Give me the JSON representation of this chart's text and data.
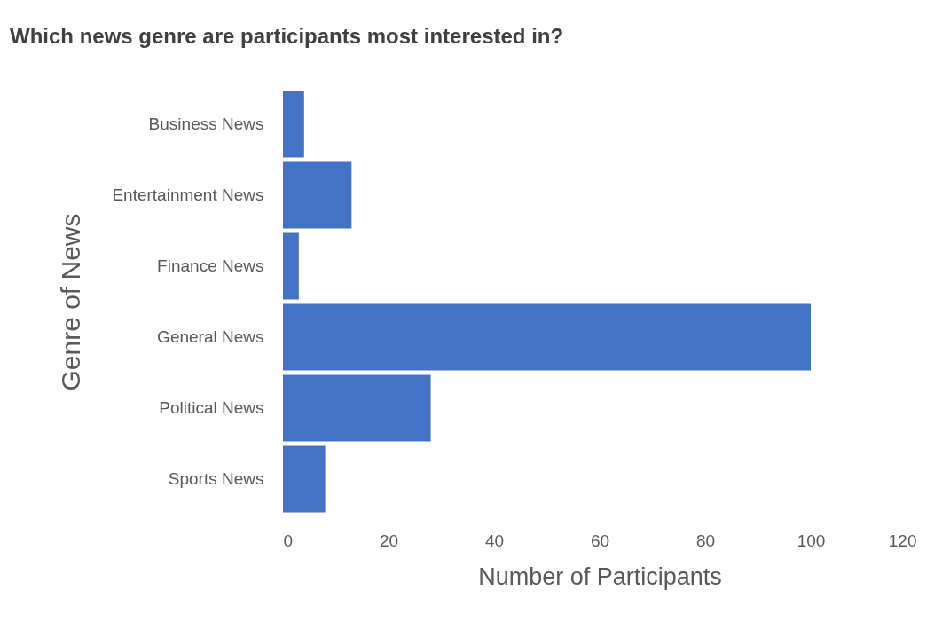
{
  "chart_data": {
    "type": "bar",
    "orientation": "horizontal",
    "title": "Which news genre are participants most interested in?",
    "xlabel": "Number of Participants",
    "ylabel": "Genre of News",
    "categories": [
      "Business News",
      "Entertainment News",
      "Finance News",
      "General News",
      "Political News",
      "Sports News"
    ],
    "values": [
      4,
      13,
      3,
      100,
      28,
      8
    ],
    "color": "#4472c4",
    "xlim": [
      0,
      120
    ],
    "xticks": [
      0,
      20,
      40,
      60,
      80,
      100,
      120
    ],
    "grid": false
  }
}
